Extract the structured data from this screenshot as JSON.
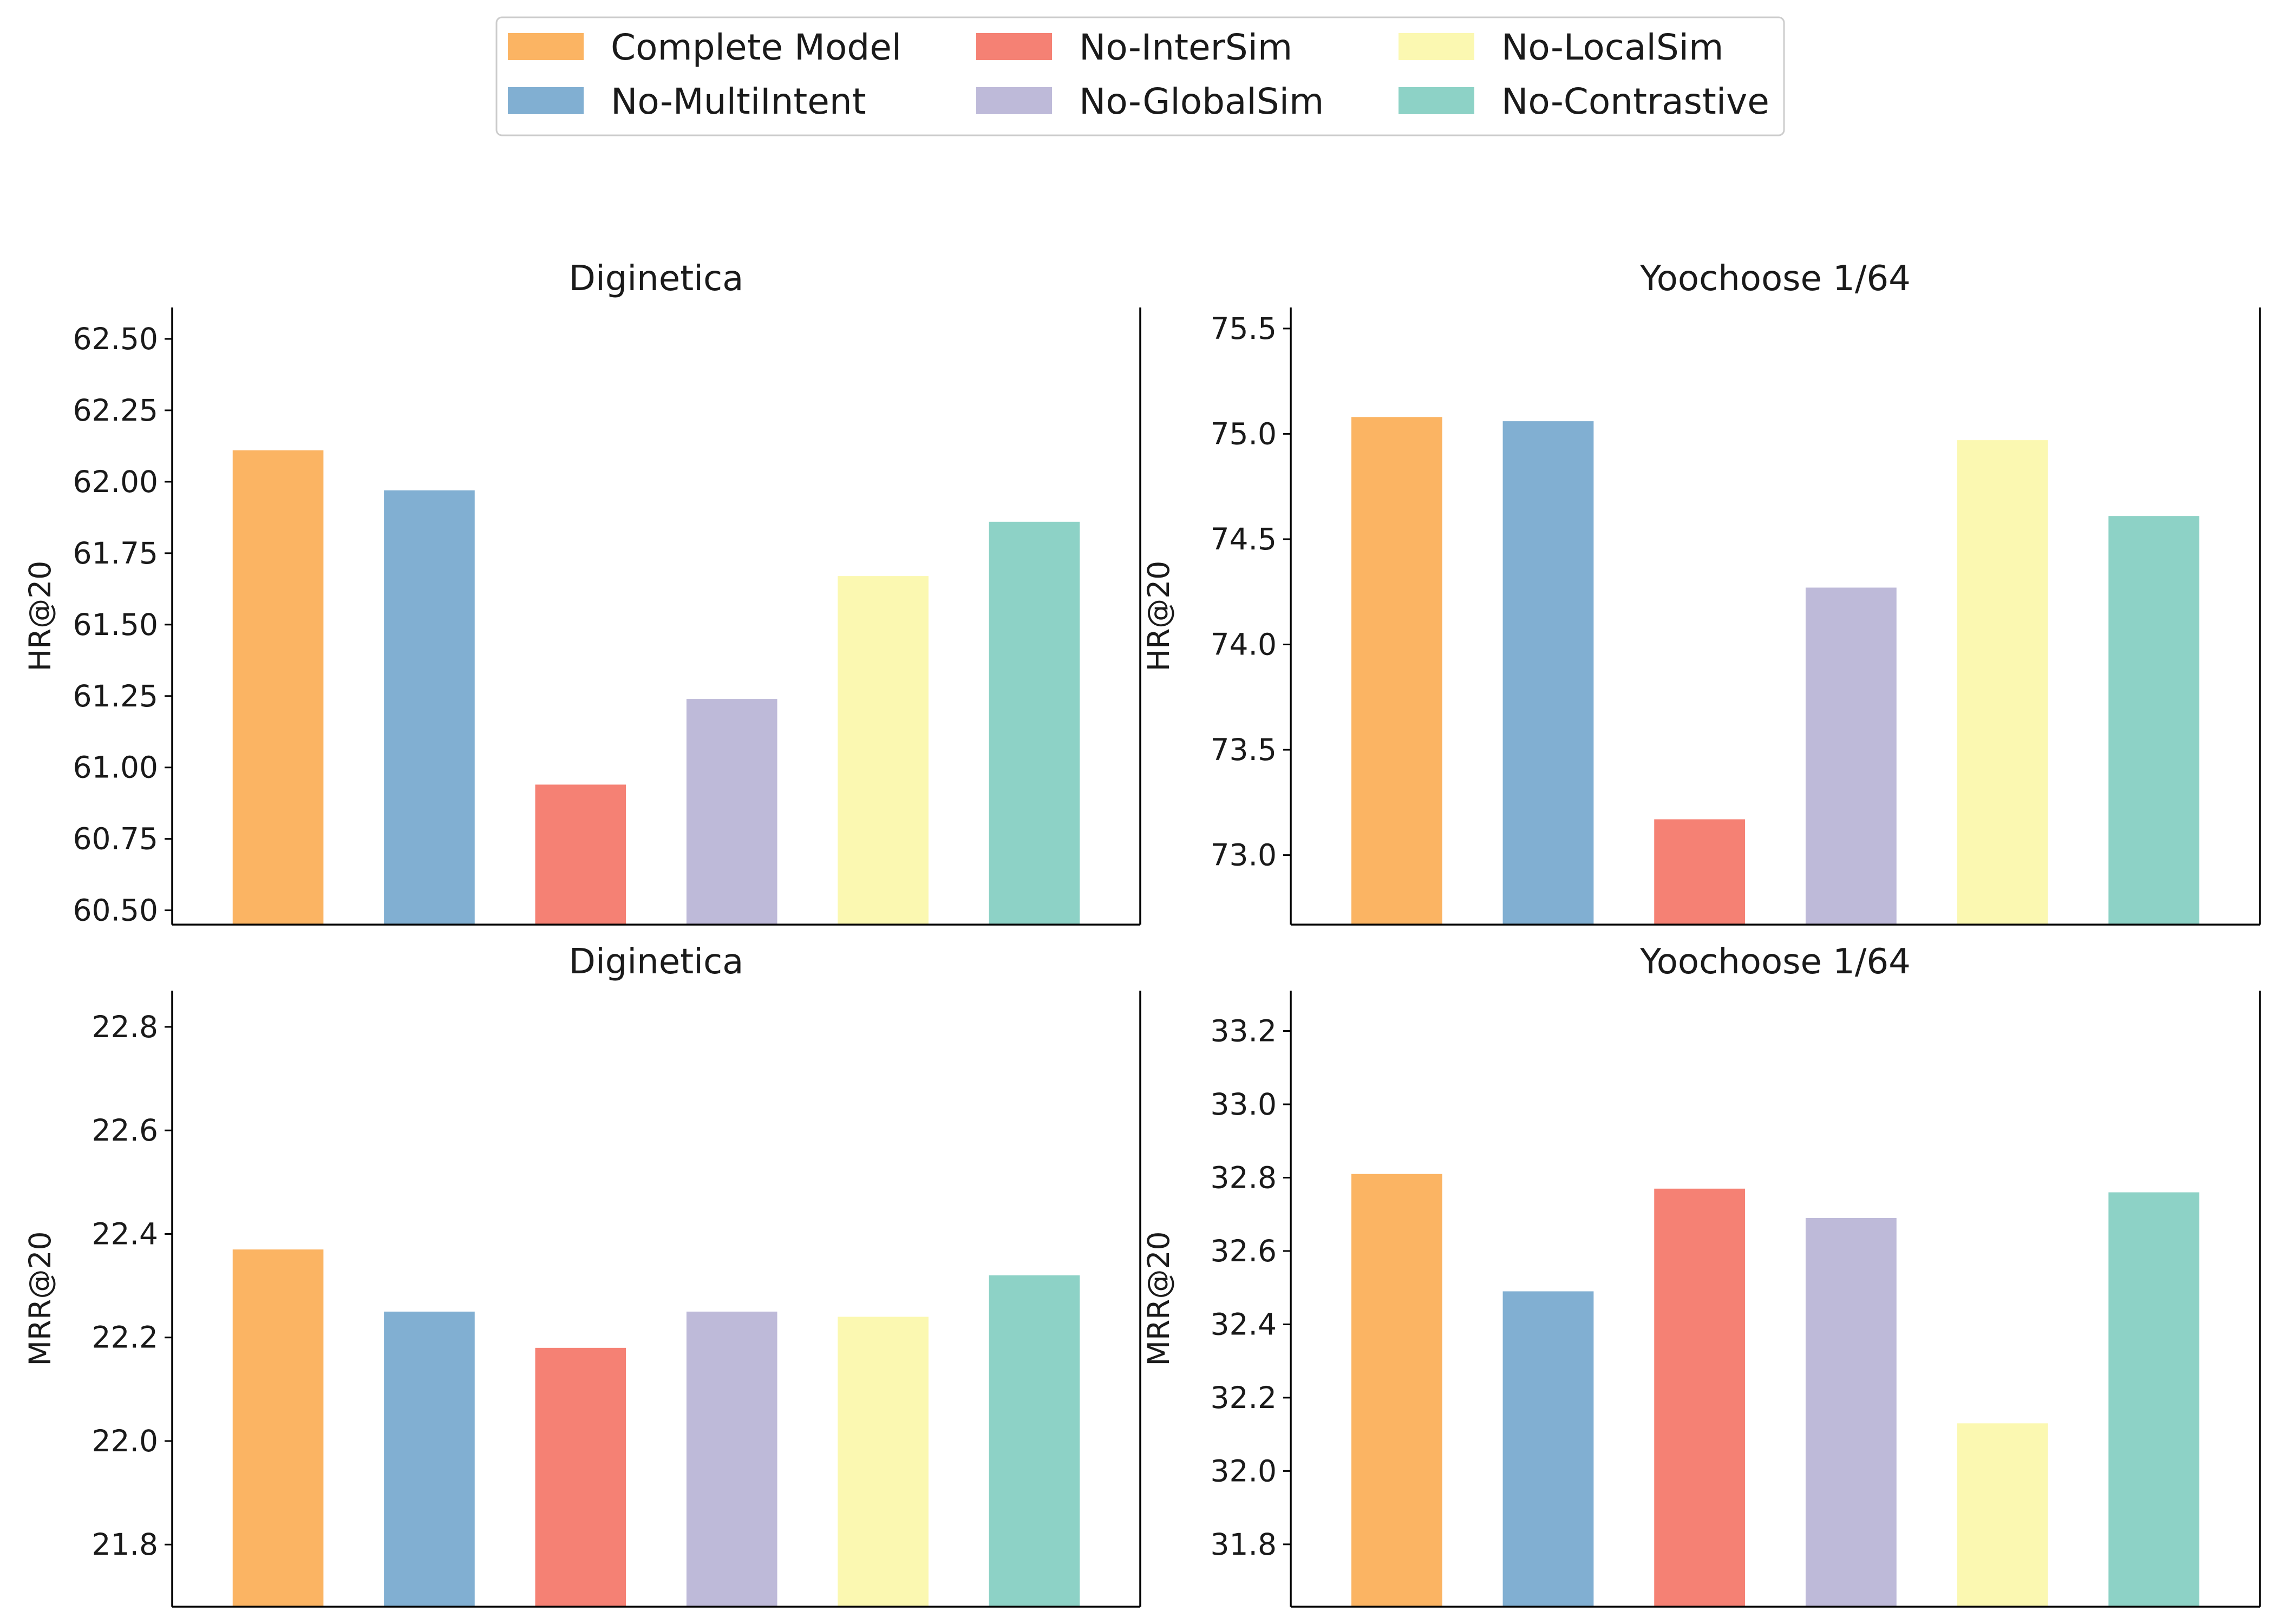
{
  "legend": {
    "entries": [
      {
        "label": "Complete Model",
        "color": "#FBB463"
      },
      {
        "label": "No-InterSim",
        "color": "#F58174"
      },
      {
        "label": "No-LocalSim",
        "color": "#FBF8B1"
      },
      {
        "label": "No-MultiIntent",
        "color": "#81AFD2"
      },
      {
        "label": "No-GlobalSim",
        "color": "#BEBAD9"
      },
      {
        "label": "No-Contrastive",
        "color": "#8DD2C6"
      }
    ]
  },
  "chart_data": [
    {
      "type": "bar",
      "title": "Diginetica",
      "xlabel": "",
      "ylabel": "HR@20",
      "categories": [
        "Complete Model",
        "No-MultiIntent",
        "No-InterSim",
        "No-GlobalSim",
        "No-LocalSim",
        "No-Contrastive"
      ],
      "values": [
        62.11,
        61.97,
        60.94,
        61.24,
        61.67,
        61.86
      ],
      "colors": [
        "#FBB463",
        "#81AFD2",
        "#F58174",
        "#BEBAD9",
        "#FBF8B1",
        "#8DD2C6"
      ],
      "ylim": [
        60.45,
        62.61
      ],
      "yticks": [
        60.5,
        60.75,
        61.0,
        61.25,
        61.5,
        61.75,
        62.0,
        62.25,
        62.5
      ],
      "ytick_labels": [
        "60.50",
        "60.75",
        "61.00",
        "61.25",
        "61.50",
        "61.75",
        "62.00",
        "62.25",
        "62.50"
      ],
      "grid": false
    },
    {
      "type": "bar",
      "title": "Yoochoose 1/64",
      "xlabel": "",
      "ylabel": "HR@20",
      "categories": [
        "Complete Model",
        "No-MultiIntent",
        "No-InterSim",
        "No-GlobalSim",
        "No-LocalSim",
        "No-Contrastive"
      ],
      "values": [
        75.08,
        75.06,
        73.17,
        74.27,
        74.97,
        74.61
      ],
      "colors": [
        "#FBB463",
        "#81AFD2",
        "#F58174",
        "#BEBAD9",
        "#FBF8B1",
        "#8DD2C6"
      ],
      "ylim": [
        72.67,
        75.6
      ],
      "yticks": [
        73.0,
        73.5,
        74.0,
        74.5,
        75.0,
        75.5
      ],
      "ytick_labels": [
        "73.0",
        "73.5",
        "74.0",
        "74.5",
        "75.0",
        "75.5"
      ],
      "grid": false
    },
    {
      "type": "bar",
      "title": "Diginetica",
      "xlabel": "",
      "ylabel": "MRR@20",
      "categories": [
        "Complete Model",
        "No-MultiIntent",
        "No-InterSim",
        "No-GlobalSim",
        "No-LocalSim",
        "No-Contrastive"
      ],
      "values": [
        22.37,
        22.25,
        22.18,
        22.25,
        22.24,
        22.32
      ],
      "colors": [
        "#FBB463",
        "#81AFD2",
        "#F58174",
        "#BEBAD9",
        "#FBF8B1",
        "#8DD2C6"
      ],
      "ylim": [
        21.68,
        22.87
      ],
      "yticks": [
        21.8,
        22.0,
        22.2,
        22.4,
        22.6,
        22.8
      ],
      "ytick_labels": [
        "21.8",
        "22.0",
        "22.2",
        "22.4",
        "22.6",
        "22.8"
      ],
      "grid": false
    },
    {
      "type": "bar",
      "title": "Yoochoose 1/64",
      "xlabel": "",
      "ylabel": "MRR@20",
      "categories": [
        "Complete Model",
        "No-MultiIntent",
        "No-InterSim",
        "No-GlobalSim",
        "No-LocalSim",
        "No-Contrastive"
      ],
      "values": [
        32.81,
        32.49,
        32.77,
        32.69,
        32.13,
        32.76
      ],
      "colors": [
        "#FBB463",
        "#81AFD2",
        "#F58174",
        "#BEBAD9",
        "#FBF8B1",
        "#8DD2C6"
      ],
      "ylim": [
        31.63,
        33.31
      ],
      "yticks": [
        31.8,
        32.0,
        32.2,
        32.4,
        32.6,
        32.8,
        33.0,
        33.2
      ],
      "ytick_labels": [
        "31.8",
        "32.0",
        "32.2",
        "32.4",
        "32.6",
        "32.8",
        "33.0",
        "33.2"
      ],
      "grid": false
    }
  ]
}
